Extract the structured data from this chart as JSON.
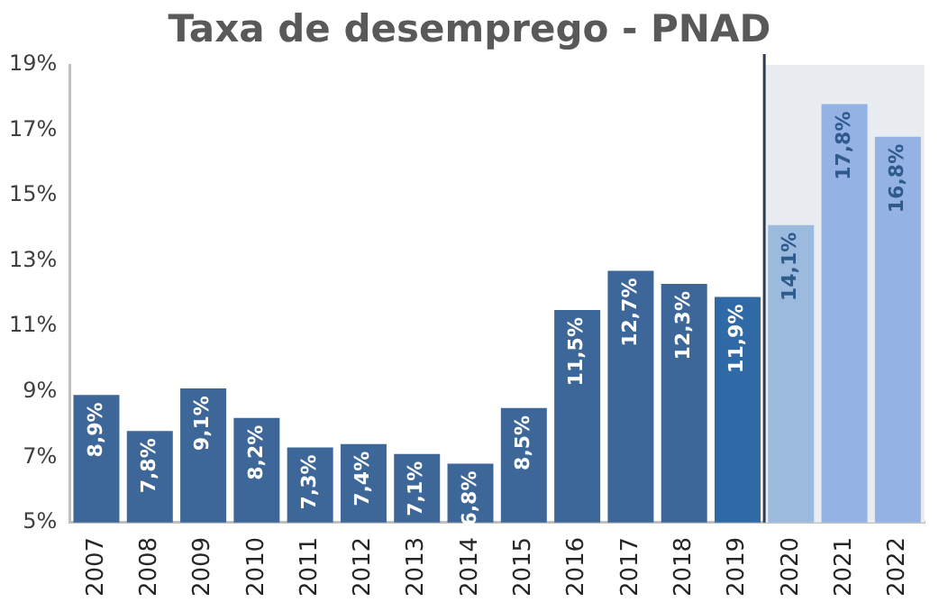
{
  "chart_data": {
    "type": "bar",
    "title": "Taxa de desemprego - PNAD",
    "categories": [
      "2007",
      "2008",
      "2009",
      "2010",
      "2011",
      "2012",
      "2013",
      "2014",
      "2015",
      "2016",
      "2017",
      "2018",
      "2019",
      "2020",
      "2021",
      "2022"
    ],
    "values": [
      8.9,
      7.8,
      9.1,
      8.2,
      7.3,
      7.4,
      7.1,
      6.8,
      8.5,
      11.5,
      12.7,
      12.3,
      11.9,
      14.1,
      17.8,
      16.8
    ],
    "colors": [
      "#3d6798",
      "#3d6798",
      "#3d6798",
      "#3d6798",
      "#3d6798",
      "#3d6798",
      "#3d6798",
      "#3d6798",
      "#3d6798",
      "#3d6798",
      "#3d6798",
      "#3d6798",
      "#2f6aa6",
      "#9bbade",
      "#94b2e4",
      "#94b2e4"
    ],
    "value_labels": [
      "8,9%",
      "7,8%",
      "9,1%",
      "8,2%",
      "7,3%",
      "7,4%",
      "7,1%",
      "6,8%",
      "8,5%",
      "11,5%",
      "12,7%",
      "12,3%",
      "11,9%",
      "14,1%",
      "17,8%",
      "16,8%"
    ],
    "ylim": [
      5,
      19
    ],
    "yticks": [
      {
        "value": 5,
        "label": "5%"
      },
      {
        "value": 7,
        "label": "7%"
      },
      {
        "value": 9,
        "label": "9%"
      },
      {
        "value": 11,
        "label": "11%"
      },
      {
        "value": 13,
        "label": "13%"
      },
      {
        "value": 15,
        "label": "15%"
      },
      {
        "value": 17,
        "label": "17%"
      },
      {
        "value": 19,
        "label": "19%"
      }
    ],
    "bands": [
      {
        "axis": "x",
        "from": "2020",
        "to": "2022",
        "color": "#e9edf1"
      }
    ],
    "grid": false,
    "legend": false
  }
}
